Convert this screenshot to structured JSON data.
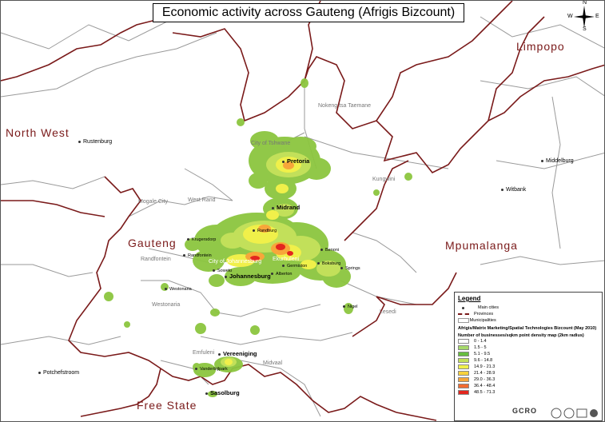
{
  "title": "Economic activity across Gauteng (Afrigis Bizcount)",
  "compass": {
    "n": "N",
    "s": "S",
    "e": "E",
    "w": "W"
  },
  "provinces": {
    "north_west": "North West",
    "limpopo": "Limpopo",
    "gauteng": "Gauteng",
    "mpumalanga": "Mpumalanga",
    "free_state": "Free State"
  },
  "main_cities": {
    "pretoria": "Pretoria",
    "midrand": "Midrand",
    "johannesburg": "Johannesburg",
    "vereeniging": "Vereeniging",
    "sasolburg": "Sasolburg",
    "rustenburg": "Rustenburg",
    "middelburg": "Middelburg",
    "witbank": "Witbank",
    "potchefstroom": "Potchefstroom"
  },
  "towns": {
    "krugersdorp": "Krugersdorp",
    "randfontein_town": "Randfontein",
    "westonaria_town": "Westonaria",
    "soweto": "Soweto",
    "boksburg": "Boksburg",
    "benoni": "Benoni",
    "germiston": "Germiston",
    "alberton": "Alberton",
    "springs": "Springs",
    "nigel": "Nigel",
    "vanderbijlpark": "Vanderbijlpark",
    "randburg": "Randburg"
  },
  "municipalities": {
    "nokeng": "Nokeng tsa Taemane",
    "tshwane": "City of Tshwane",
    "kungwini": "Kungwini",
    "mogale": "Mogale City",
    "west_rand": "West Rand",
    "randfontein": "Randfontein",
    "joburg": "City of Johannesburg",
    "ekurhuleni": "Ekurhuleni",
    "westonaria": "Westonaria",
    "lesedi": "Lesedi",
    "emfuleni": "Emfuleni",
    "midvaal": "Midvaal"
  },
  "legend": {
    "title": "Legend",
    "main_cities": "Main cities",
    "provinces": "Provinces",
    "local_municipalities": "Local Municipalities",
    "source": "Afrigis/Matrix Marketing/Spatial Technologies Bizcount (May 2010)",
    "density_title": "Number of businesses/sqkm point density map (2km radius)",
    "classes": [
      {
        "label": "0 - 1.4",
        "color": "#ffffff"
      },
      {
        "label": "1.5 - 5",
        "color": "#a6d96a"
      },
      {
        "label": "5.1 - 9.5",
        "color": "#66bd3f"
      },
      {
        "label": "9.6 - 14.8",
        "color": "#c2e05a"
      },
      {
        "label": "14.9 - 21.3",
        "color": "#f0f04a"
      },
      {
        "label": "21.4 - 28.9",
        "color": "#f9d23c"
      },
      {
        "label": "29.0 - 36.3",
        "color": "#f7a63a"
      },
      {
        "label": "36.4 - 48.4",
        "color": "#f26b30"
      },
      {
        "label": "48.5 - 71.3",
        "color": "#e3261f"
      }
    ]
  },
  "footer": {
    "brand": "GCRO"
  },
  "colors": {
    "province_border": "#7a1a1a",
    "municipal_border": "#9a9a9a",
    "low_density": "#8cc63f",
    "mid_density": "#f0f04a",
    "high_density": "#f26b30",
    "peak_density": "#e3261f"
  }
}
